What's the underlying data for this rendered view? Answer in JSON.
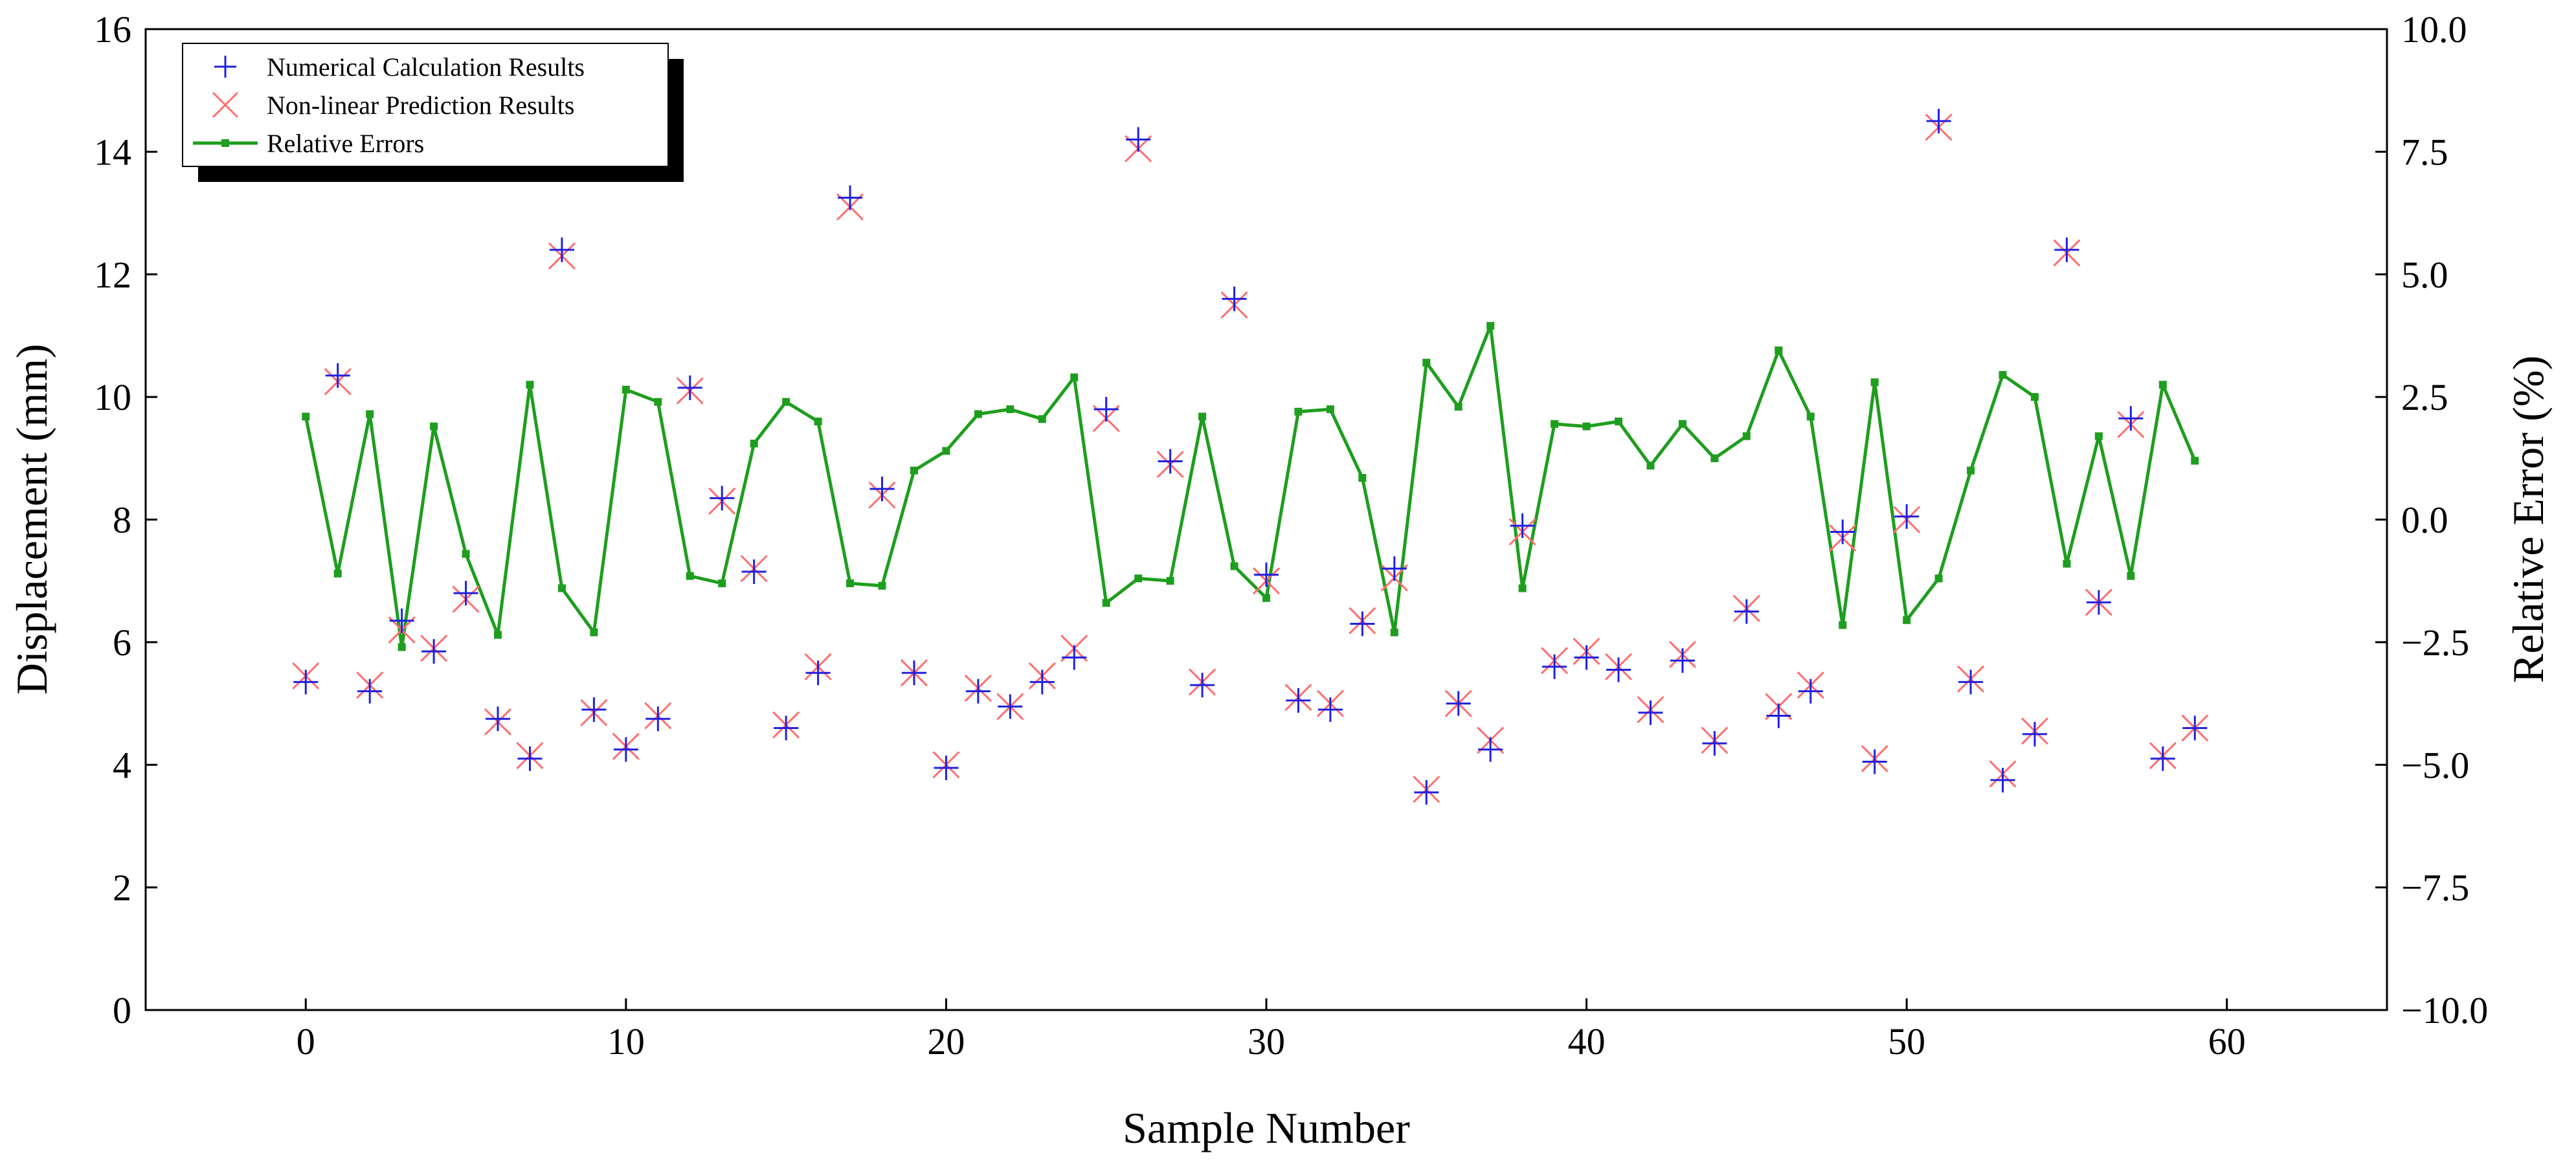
{
  "chart_data": {
    "type": "scatter",
    "title": "",
    "xlabel": "Sample Number",
    "ylabel": "Displacement (mm)",
    "y2label": "Relative Error (%)",
    "xlim": [
      -5,
      65
    ],
    "ylim": [
      0,
      16
    ],
    "y2lim": [
      -10.0,
      10.0
    ],
    "xticks": [
      0,
      10,
      20,
      30,
      40,
      50,
      60
    ],
    "yticks": [
      0,
      2,
      4,
      6,
      8,
      10,
      12,
      14,
      16
    ],
    "y2ticks": [
      -10.0,
      -7.5,
      -5.0,
      -2.5,
      0.0,
      2.5,
      5.0,
      7.5,
      10.0
    ],
    "y2tick_labels": [
      "−10.0",
      "−7.5",
      "−5.0",
      "−2.5",
      "0.0",
      "2.5",
      "5.0",
      "7.5",
      "10.0"
    ],
    "grid": false,
    "legend_position": "top-left",
    "x": [
      0,
      1,
      2,
      3,
      4,
      5,
      6,
      7,
      8,
      9,
      10,
      11,
      12,
      13,
      14,
      15,
      16,
      17,
      18,
      19,
      20,
      21,
      22,
      23,
      24,
      25,
      26,
      27,
      28,
      29,
      30,
      31,
      32,
      33,
      34,
      35,
      36,
      37,
      38,
      39,
      40,
      41,
      42,
      43,
      44,
      45,
      46,
      47,
      48,
      49,
      50,
      51,
      52,
      53,
      54,
      55,
      56,
      57,
      58,
      59
    ],
    "series": [
      {
        "name": "Numerical Calculation Results",
        "axis": "left",
        "marker": "plus",
        "color": "#2020e0",
        "values": [
          5.35,
          10.35,
          5.2,
          6.35,
          5.85,
          6.8,
          4.75,
          4.1,
          12.4,
          4.9,
          4.25,
          4.75,
          10.15,
          8.35,
          7.15,
          4.6,
          5.5,
          13.25,
          8.5,
          5.5,
          3.95,
          5.2,
          4.95,
          5.35,
          5.75,
          9.8,
          14.2,
          8.95,
          5.3,
          11.6,
          7.1,
          5.05,
          4.9,
          6.3,
          7.2,
          3.55,
          5.0,
          4.25,
          7.9,
          5.6,
          5.75,
          5.55,
          4.85,
          5.7,
          4.35,
          6.5,
          4.8,
          5.2,
          7.8,
          4.05,
          8.05,
          14.5,
          5.35,
          3.75,
          4.5,
          12.4,
          6.65,
          9.65,
          4.1,
          4.6
        ]
      },
      {
        "name": "Non-linear Prediction Results",
        "axis": "left",
        "marker": "x",
        "color": "#ff6e6e",
        "values": [
          5.45,
          10.25,
          5.3,
          6.2,
          5.9,
          6.7,
          4.7,
          4.15,
          12.3,
          4.85,
          4.3,
          4.8,
          10.1,
          8.3,
          7.2,
          4.65,
          5.6,
          13.1,
          8.4,
          5.5,
          4.0,
          5.25,
          4.95,
          5.45,
          5.9,
          9.65,
          14.05,
          8.9,
          5.35,
          11.5,
          7.0,
          5.1,
          5.0,
          6.35,
          7.05,
          3.6,
          5.0,
          4.4,
          7.8,
          5.7,
          5.85,
          5.6,
          4.9,
          5.8,
          4.4,
          6.55,
          4.95,
          5.3,
          7.7,
          4.1,
          8.0,
          14.4,
          5.4,
          3.85,
          4.55,
          12.35,
          6.65,
          9.55,
          4.15,
          4.6
        ]
      },
      {
        "name": "Relative Errors",
        "axis": "right",
        "marker": "line-square",
        "color": "#1e9e1e",
        "values": [
          2.1,
          -1.1,
          2.15,
          -2.6,
          1.9,
          -0.7,
          -2.35,
          2.75,
          -1.4,
          -2.3,
          2.65,
          2.4,
          -1.15,
          -1.3,
          1.55,
          2.4,
          2.0,
          -1.3,
          -1.35,
          1.0,
          1.4,
          2.15,
          2.25,
          2.05,
          2.9,
          -1.7,
          -1.2,
          -1.25,
          2.1,
          -0.95,
          -1.6,
          2.2,
          2.25,
          0.85,
          -2.3,
          3.2,
          2.3,
          3.95,
          -1.4,
          1.95,
          1.9,
          2.0,
          1.1,
          1.95,
          1.25,
          1.7,
          3.45,
          2.1,
          -2.15,
          2.8,
          -2.05,
          -1.2,
          1.0,
          2.95,
          2.5,
          -0.9,
          1.7,
          -1.15,
          2.75,
          1.2
        ]
      }
    ]
  }
}
